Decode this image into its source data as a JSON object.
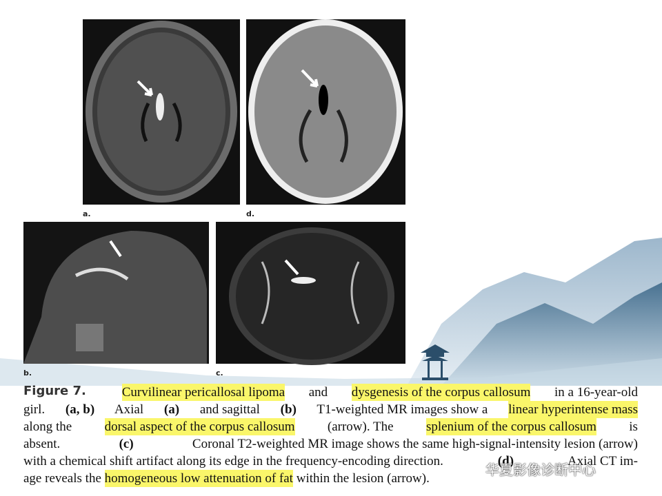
{
  "panels": [
    {
      "label": "a."
    },
    {
      "label": "d."
    },
    {
      "label": "b."
    },
    {
      "label": "c."
    }
  ],
  "caption": {
    "lines": [
      [
        {
          "text": "Figure 7.",
          "style": "label"
        },
        {
          "text": "Curvilinear pericallosal lipoma",
          "style": "highlight"
        },
        {
          "text": " and ",
          "style": "plain"
        },
        {
          "text": "dysgenesis of the corpus callosum",
          "style": "highlight"
        },
        {
          "text": " in a 16-year-old",
          "style": "plain"
        }
      ],
      [
        {
          "text": "girl. ",
          "style": "plain"
        },
        {
          "text": "(a, b)",
          "style": "bold"
        },
        {
          "text": " Axial ",
          "style": "plain"
        },
        {
          "text": "(a)",
          "style": "bold"
        },
        {
          "text": " and sagittal ",
          "style": "plain"
        },
        {
          "text": "(b)",
          "style": "bold"
        },
        {
          "text": " T1-weighted MR images show a ",
          "style": "plain"
        },
        {
          "text": "linear hyperintense mass",
          "style": "highlight"
        }
      ],
      [
        {
          "text": "along the ",
          "style": "plain"
        },
        {
          "text": "dorsal aspect of the corpus callosum",
          "style": "highlight"
        },
        {
          "text": " (arrow). The ",
          "style": "plain"
        },
        {
          "text": "splenium of the corpus callosum",
          "style": "highlight"
        },
        {
          "text": " is",
          "style": "plain"
        }
      ],
      [
        {
          "text": "absent. ",
          "style": "plain"
        },
        {
          "text": "(c)",
          "style": "bold"
        },
        {
          "text": " Coronal T2-weighted MR image shows the same high-signal-intensity lesion (arrow)",
          "style": "plain"
        }
      ],
      [
        {
          "text": "with a chemical shift artifact along its edge in the frequency-encoding direction. ",
          "style": "plain"
        },
        {
          "text": "(d)",
          "style": "bold"
        },
        {
          "text": " Axial CT im-",
          "style": "plain"
        }
      ],
      [
        {
          "text": "age reveals the ",
          "style": "plain"
        },
        {
          "text": "homogeneous low attenuation of fat",
          "style": "highlight"
        },
        {
          "text": " within the lesion (arrow).",
          "style": "plain"
        }
      ]
    ]
  },
  "watermark": "华夏影像诊断中心"
}
